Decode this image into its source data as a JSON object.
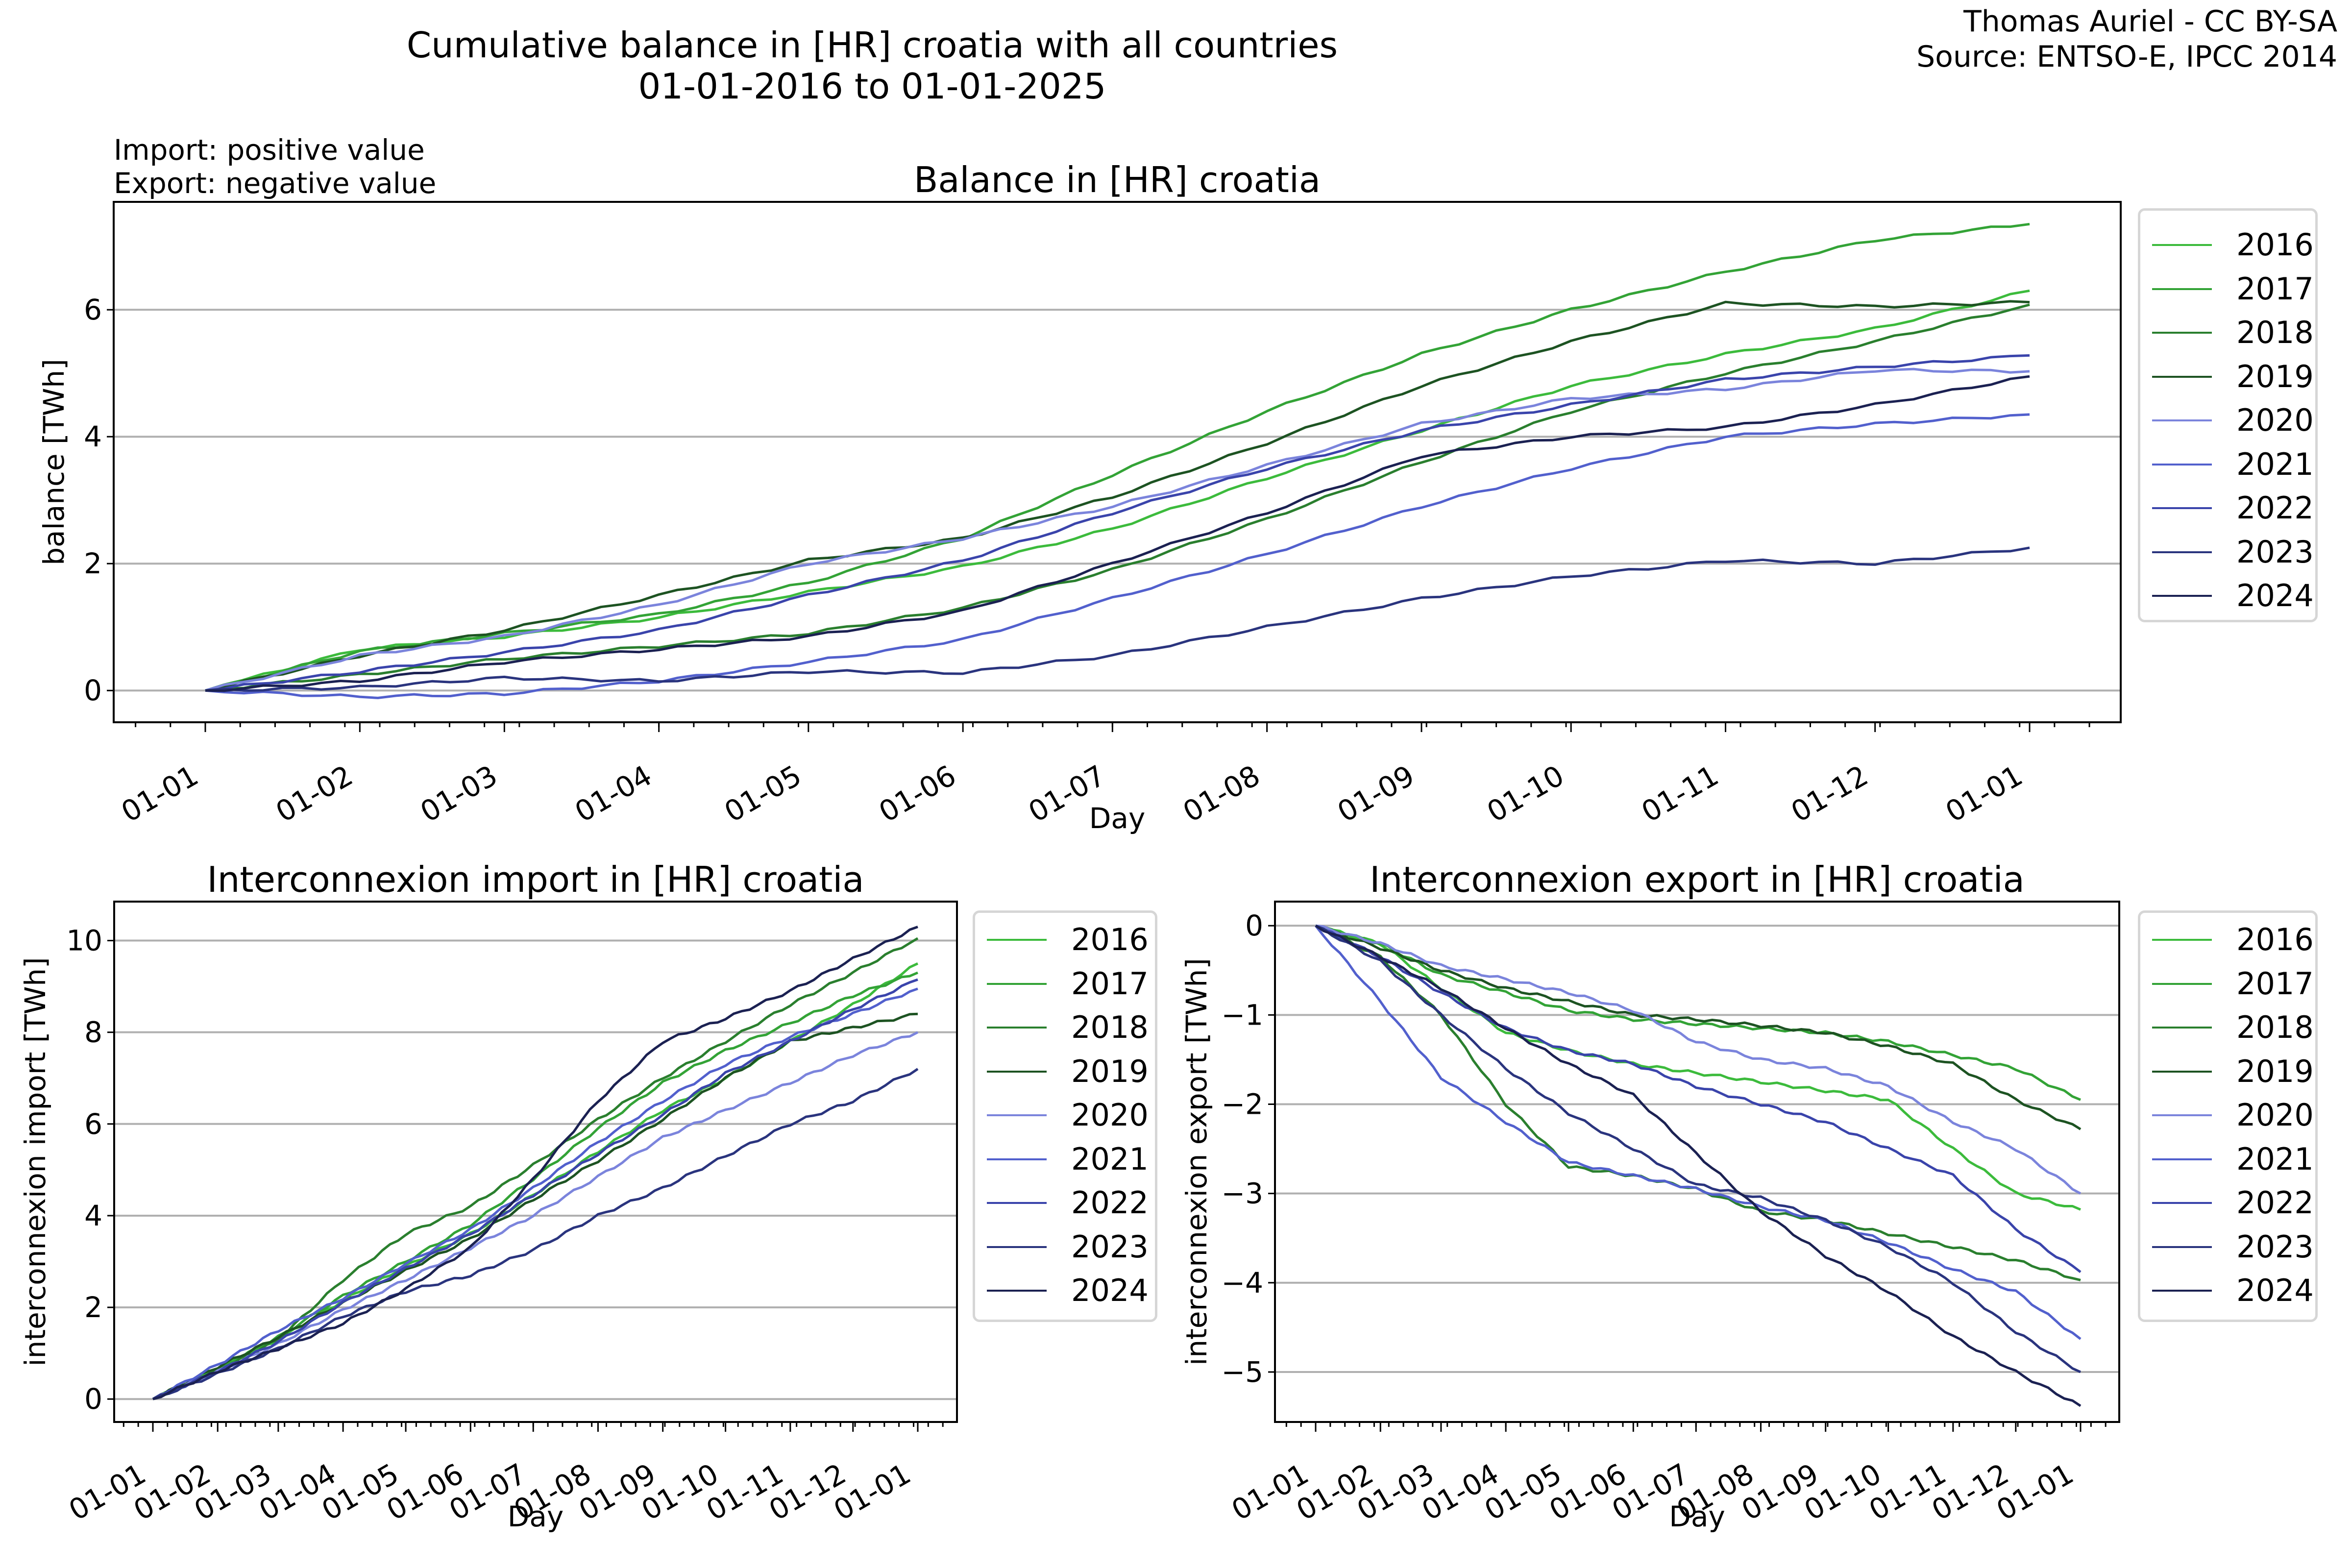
{
  "suptitle": {
    "line1": "Cumulative balance in [HR] croatia with all countries",
    "line2": "01-01-2016 to 01-01-2025"
  },
  "attribution": {
    "line1": "Thomas Auriel - CC BY-SA",
    "line2": "Source: ENTSO-E, IPCC 2014"
  },
  "note": {
    "line1": "Import: positive value",
    "line2": "Export: negative value"
  },
  "series_colors": {
    "2016": "#3cbb3c",
    "2017": "#33a336",
    "2018": "#2a7f2e",
    "2019": "#1d5322",
    "2020": "#7b84dc",
    "2021": "#5260cd",
    "2022": "#3a44ab",
    "2023": "#2a347e",
    "2024": "#1b2152"
  },
  "chart_data": [
    {
      "id": "balance",
      "type": "line",
      "title": "Balance in [HR] croatia",
      "xlabel": "Day",
      "ylabel": "balance [TWh]",
      "x": [
        "01-01",
        "01-02",
        "01-03",
        "01-04",
        "01-05",
        "01-06",
        "01-07",
        "01-08",
        "01-09",
        "01-10",
        "01-11",
        "01-12",
        "01-01"
      ],
      "xticks": [
        "01-01",
        "01-02",
        "01-03",
        "01-04",
        "01-05",
        "01-06",
        "01-07",
        "01-08",
        "01-09",
        "01-10",
        "01-11",
        "01-12",
        "01-01"
      ],
      "yticks": [
        0,
        2,
        4,
        6
      ],
      "ylim": [
        -0.5,
        7.7
      ],
      "grid": "horizontal",
      "legend_position": "outside-right",
      "series": [
        {
          "name": "2016",
          "values": [
            0,
            0.65,
            0.85,
            1.15,
            1.55,
            1.95,
            2.55,
            3.35,
            4.1,
            4.8,
            5.3,
            5.7,
            6.3
          ]
        },
        {
          "name": "2017",
          "values": [
            0,
            0.62,
            0.9,
            1.2,
            1.7,
            2.4,
            3.4,
            4.4,
            5.3,
            6.0,
            6.6,
            7.1,
            7.35
          ]
        },
        {
          "name": "2018",
          "values": [
            0,
            0.25,
            0.5,
            0.7,
            0.9,
            1.3,
            1.9,
            2.7,
            3.6,
            4.4,
            5.0,
            5.5,
            6.08
          ]
        },
        {
          "name": "2019",
          "values": [
            0,
            0.55,
            0.95,
            1.5,
            2.05,
            2.4,
            3.05,
            3.9,
            4.8,
            5.5,
            6.1,
            6.05,
            6.12
          ]
        },
        {
          "name": "2020",
          "values": [
            0,
            0.55,
            0.85,
            1.35,
            2.0,
            2.4,
            2.9,
            3.55,
            4.2,
            4.6,
            4.75,
            5.05,
            5.03
          ]
        },
        {
          "name": "2021",
          "values": [
            0,
            -0.1,
            -0.05,
            0.15,
            0.45,
            0.8,
            1.45,
            2.15,
            2.9,
            3.5,
            4.0,
            4.2,
            4.35
          ]
        },
        {
          "name": "2022",
          "values": [
            0,
            0.3,
            0.6,
            0.95,
            1.5,
            2.05,
            2.8,
            3.5,
            4.1,
            4.5,
            4.9,
            5.1,
            5.28
          ]
        },
        {
          "name": "2023",
          "values": [
            0,
            0.05,
            0.2,
            0.15,
            0.3,
            0.28,
            0.55,
            1.0,
            1.45,
            1.8,
            2.05,
            2.0,
            2.25
          ]
        },
        {
          "name": "2024",
          "values": [
            0,
            0.15,
            0.45,
            0.65,
            0.85,
            1.25,
            2.0,
            2.8,
            3.7,
            4.0,
            4.15,
            4.5,
            4.95
          ]
        }
      ]
    },
    {
      "id": "import",
      "type": "line",
      "title": "Interconnexion import in [HR] croatia",
      "xlabel": "Day",
      "ylabel": "interconnexion import [TWh]",
      "x": [
        "01-01",
        "01-02",
        "01-03",
        "01-04",
        "01-05",
        "01-06",
        "01-07",
        "01-08",
        "01-09",
        "01-10",
        "01-11",
        "01-12",
        "01-01"
      ],
      "xticks": [
        "01-01",
        "01-02",
        "01-03",
        "01-04",
        "01-05",
        "01-06",
        "01-07",
        "01-08",
        "01-09",
        "01-10",
        "01-11",
        "01-12",
        "01-01"
      ],
      "yticks": [
        0,
        2,
        4,
        6,
        8,
        10
      ],
      "ylim": [
        -0.5,
        10.85
      ],
      "grid": "horizontal",
      "legend_position": "outside-right",
      "series": [
        {
          "name": "2016",
          "values": [
            0,
            0.65,
            1.3,
            2.15,
            2.9,
            3.6,
            4.45,
            5.4,
            6.3,
            7.0,
            7.8,
            8.6,
            9.5
          ]
        },
        {
          "name": "2017",
          "values": [
            0,
            0.65,
            1.35,
            2.25,
            3.0,
            3.8,
            4.8,
            5.9,
            6.9,
            7.6,
            8.2,
            8.8,
            9.3
          ]
        },
        {
          "name": "2018",
          "values": [
            0,
            0.6,
            1.3,
            2.6,
            3.6,
            4.2,
            5.1,
            6.1,
            7.0,
            7.8,
            8.6,
            9.3,
            10.05
          ]
        },
        {
          "name": "2019",
          "values": [
            0,
            0.7,
            1.35,
            2.1,
            2.8,
            3.5,
            4.35,
            5.2,
            6.1,
            7.0,
            7.8,
            8.1,
            8.4
          ]
        },
        {
          "name": "2020",
          "values": [
            0,
            0.6,
            1.2,
            1.95,
            2.6,
            3.3,
            4.0,
            4.85,
            5.7,
            6.3,
            6.9,
            7.5,
            8.0
          ]
        },
        {
          "name": "2021",
          "values": [
            0,
            0.75,
            1.5,
            2.2,
            2.95,
            3.7,
            4.6,
            5.6,
            6.5,
            7.3,
            7.9,
            8.4,
            8.95
          ]
        },
        {
          "name": "2022",
          "values": [
            0,
            0.6,
            1.25,
            2.1,
            2.85,
            3.6,
            4.45,
            5.35,
            6.2,
            7.1,
            7.8,
            8.5,
            9.15
          ]
        },
        {
          "name": "2023",
          "values": [
            0,
            0.55,
            1.1,
            1.8,
            2.35,
            2.7,
            3.25,
            4.0,
            4.6,
            5.3,
            6.0,
            6.5,
            7.2
          ]
        },
        {
          "name": "2024",
          "values": [
            0,
            0.6,
            1.1,
            1.65,
            2.4,
            3.3,
            4.8,
            6.5,
            7.8,
            8.3,
            8.9,
            9.6,
            10.3
          ]
        }
      ]
    },
    {
      "id": "export",
      "type": "line",
      "title": "Interconnexion export in [HR] croatia",
      "xlabel": "Day",
      "ylabel": "interconnexion export [TWh]",
      "x": [
        "01-01",
        "01-02",
        "01-03",
        "01-04",
        "01-05",
        "01-06",
        "01-07",
        "01-08",
        "01-09",
        "01-10",
        "01-11",
        "01-12",
        "01-01"
      ],
      "xticks": [
        "01-01",
        "01-02",
        "01-03",
        "01-04",
        "01-05",
        "01-06",
        "01-07",
        "01-08",
        "01-09",
        "01-10",
        "01-11",
        "01-12",
        "01-01"
      ],
      "yticks": [
        0,
        -1,
        -2,
        -3,
        -4,
        -5
      ],
      "ytick_labels": [
        "0",
        "−1",
        "−2",
        "−3",
        "−4",
        "−5"
      ],
      "ylim": [
        -5.56,
        0.27
      ],
      "grid": "horizontal",
      "legend_position": "outside-right",
      "series": [
        {
          "name": "2016",
          "values": [
            0,
            -0.2,
            -0.7,
            -1.2,
            -1.4,
            -1.55,
            -1.65,
            -1.75,
            -1.85,
            -1.95,
            -2.5,
            -3.0,
            -3.18
          ]
        },
        {
          "name": "2017",
          "values": [
            0,
            -0.2,
            -0.55,
            -0.75,
            -0.95,
            -1.05,
            -1.1,
            -1.15,
            -1.2,
            -1.3,
            -1.45,
            -1.6,
            -1.95
          ]
        },
        {
          "name": "2018",
          "values": [
            0,
            -0.35,
            -1.0,
            -2.0,
            -2.7,
            -2.8,
            -2.95,
            -3.2,
            -3.3,
            -3.45,
            -3.6,
            -3.75,
            -3.97
          ]
        },
        {
          "name": "2019",
          "values": [
            0,
            -0.25,
            -0.5,
            -0.7,
            -0.85,
            -1.0,
            -1.05,
            -1.12,
            -1.2,
            -1.35,
            -1.55,
            -1.95,
            -2.28
          ]
        },
        {
          "name": "2020",
          "values": [
            0,
            -0.2,
            -0.45,
            -0.6,
            -0.75,
            -0.95,
            -1.3,
            -1.5,
            -1.6,
            -1.8,
            -2.2,
            -2.5,
            -3.0
          ]
        },
        {
          "name": "2021",
          "values": [
            0,
            -0.85,
            -1.7,
            -2.2,
            -2.65,
            -2.8,
            -2.95,
            -3.15,
            -3.3,
            -3.55,
            -3.85,
            -4.1,
            -4.63
          ]
        },
        {
          "name": "2022",
          "values": [
            0,
            -0.35,
            -0.75,
            -1.15,
            -1.4,
            -1.55,
            -1.8,
            -2.0,
            -2.2,
            -2.5,
            -2.8,
            -3.4,
            -3.88
          ]
        },
        {
          "name": "2023",
          "values": [
            0,
            -0.4,
            -1.0,
            -1.6,
            -2.1,
            -2.5,
            -2.9,
            -3.05,
            -3.3,
            -3.6,
            -4.0,
            -4.55,
            -5.0
          ]
        },
        {
          "name": "2024",
          "values": [
            0,
            -0.35,
            -0.7,
            -1.15,
            -1.55,
            -1.9,
            -2.55,
            -3.2,
            -3.7,
            -4.1,
            -4.6,
            -5.0,
            -5.38
          ]
        }
      ]
    }
  ]
}
